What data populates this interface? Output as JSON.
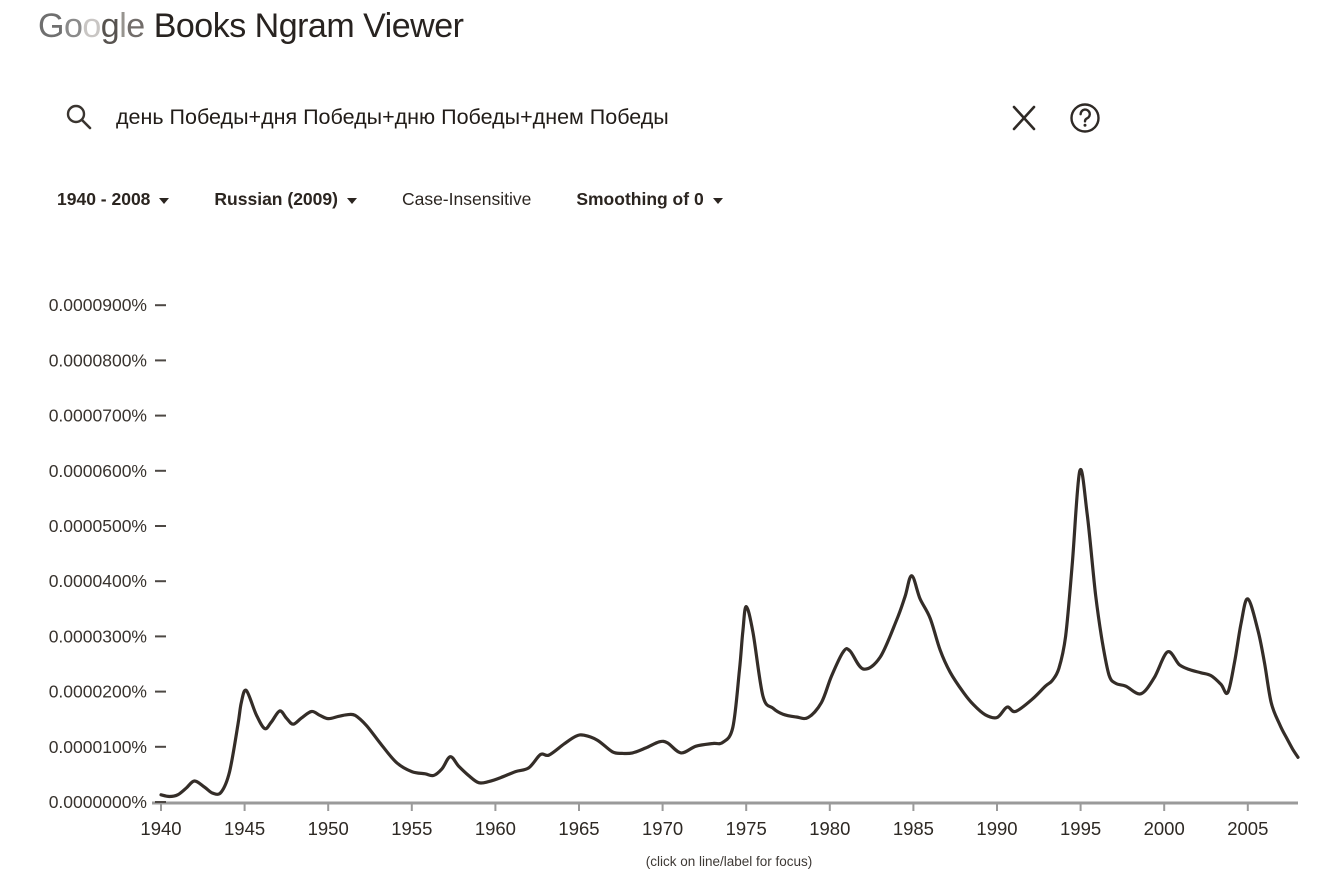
{
  "header": {
    "brand": "Google",
    "product": "Books Ngram Viewer"
  },
  "search": {
    "query": "день Победы+дня Победы+дню Победы+днем Победы",
    "icons": {
      "search": "magnifier-icon",
      "clear": "close-x-icon",
      "help": "question-mark-icon"
    }
  },
  "controls": [
    {
      "label": "1940 - 2008",
      "dropdown": true
    },
    {
      "label": "Russian (2009)",
      "dropdown": true
    },
    {
      "label": "Case-Insensitive",
      "dropdown": false
    },
    {
      "label": "Smoothing of 0",
      "dropdown": true
    }
  ],
  "footer": {
    "hint": "(click on line/label for focus)"
  },
  "chart_data": {
    "type": "line",
    "title": "",
    "xlabel": "",
    "ylabel": "",
    "grid": false,
    "legend": "none",
    "xlim": [
      1940,
      2008
    ],
    "ylim_percent": [
      0.0,
      9e-05
    ],
    "x_ticks": [
      1940,
      1945,
      1950,
      1955,
      1960,
      1965,
      1970,
      1975,
      1980,
      1985,
      1990,
      1995,
      2000,
      2005
    ],
    "y_ticks": [
      {
        "label": "0.0000900%",
        "value": 900
      },
      {
        "label": "0.0000800%",
        "value": 800
      },
      {
        "label": "0.0000700%",
        "value": 700
      },
      {
        "label": "0.0000600%",
        "value": 600
      },
      {
        "label": "0.0000500%",
        "value": 500
      },
      {
        "label": "0.0000400%",
        "value": 400
      },
      {
        "label": "0.0000300%",
        "value": 300
      },
      {
        "label": "0.0000200%",
        "value": 200
      },
      {
        "label": "0.0000100%",
        "value": 100
      },
      {
        "label": "0.0000000%",
        "value": 0
      }
    ],
    "value_unit": "percent",
    "value_scale": 1e-07,
    "colors": {
      "line": "#342d28",
      "axis": "#9a9a9a",
      "tick_dash": "#4d4844",
      "tick_text": "#2e2924"
    },
    "series": [
      {
        "name": "день Победы+дня Победы+дню Победы+днем Победы",
        "color": "#342d28",
        "points": [
          [
            1940.0,
            13
          ],
          [
            1940.5,
            10
          ],
          [
            1941.0,
            13
          ],
          [
            1941.5,
            25
          ],
          [
            1942.0,
            38
          ],
          [
            1942.6,
            27
          ],
          [
            1943.1,
            16
          ],
          [
            1943.6,
            18
          ],
          [
            1944.1,
            55
          ],
          [
            1944.6,
            140
          ],
          [
            1944.8,
            180
          ],
          [
            1945.1,
            202
          ],
          [
            1945.7,
            158
          ],
          [
            1946.2,
            133
          ],
          [
            1946.6,
            145
          ],
          [
            1947.1,
            165
          ],
          [
            1947.5,
            152
          ],
          [
            1947.9,
            141
          ],
          [
            1948.4,
            152
          ],
          [
            1949.0,
            164
          ],
          [
            1949.5,
            157
          ],
          [
            1950.0,
            151
          ],
          [
            1950.6,
            155
          ],
          [
            1951.1,
            158
          ],
          [
            1951.6,
            157
          ],
          [
            1952.3,
            138
          ],
          [
            1953.2,
            103
          ],
          [
            1954.1,
            71
          ],
          [
            1955.0,
            55
          ],
          [
            1955.8,
            51
          ],
          [
            1956.3,
            48
          ],
          [
            1956.8,
            60
          ],
          [
            1957.3,
            82
          ],
          [
            1957.8,
            65
          ],
          [
            1958.4,
            48
          ],
          [
            1959.0,
            35
          ],
          [
            1959.6,
            37
          ],
          [
            1960.3,
            44
          ],
          [
            1961.2,
            55
          ],
          [
            1962.0,
            62
          ],
          [
            1962.7,
            86
          ],
          [
            1963.2,
            85
          ],
          [
            1964.1,
            105
          ],
          [
            1964.8,
            119
          ],
          [
            1965.3,
            121
          ],
          [
            1966.1,
            112
          ],
          [
            1967.0,
            91
          ],
          [
            1967.6,
            88
          ],
          [
            1968.2,
            89
          ],
          [
            1969.0,
            98
          ],
          [
            1969.8,
            109
          ],
          [
            1970.3,
            107
          ],
          [
            1971.1,
            89
          ],
          [
            1972.0,
            101
          ],
          [
            1973.0,
            106
          ],
          [
            1973.6,
            108
          ],
          [
            1974.2,
            135
          ],
          [
            1974.6,
            240
          ],
          [
            1974.8,
            310
          ],
          [
            1975.0,
            354
          ],
          [
            1975.4,
            308
          ],
          [
            1976.0,
            192
          ],
          [
            1976.6,
            170
          ],
          [
            1977.2,
            159
          ],
          [
            1978.0,
            154
          ],
          [
            1978.7,
            153
          ],
          [
            1979.5,
            180
          ],
          [
            1980.1,
            228
          ],
          [
            1980.8,
            272
          ],
          [
            1981.2,
            274
          ],
          [
            1982.0,
            241
          ],
          [
            1983.0,
            262
          ],
          [
            1984.0,
            330
          ],
          [
            1984.5,
            372
          ],
          [
            1984.9,
            410
          ],
          [
            1985.4,
            368
          ],
          [
            1986.0,
            333
          ],
          [
            1986.6,
            275
          ],
          [
            1987.2,
            235
          ],
          [
            1988.0,
            198
          ],
          [
            1988.6,
            176
          ],
          [
            1989.3,
            158
          ],
          [
            1990.0,
            153
          ],
          [
            1990.6,
            172
          ],
          [
            1991.1,
            164
          ],
          [
            1992.1,
            186
          ],
          [
            1992.9,
            210
          ],
          [
            1993.3,
            220
          ],
          [
            1993.7,
            242
          ],
          [
            1994.1,
            300
          ],
          [
            1994.5,
            430
          ],
          [
            1994.95,
            600
          ],
          [
            1995.4,
            520
          ],
          [
            1995.9,
            375
          ],
          [
            1996.3,
            290
          ],
          [
            1996.7,
            230
          ],
          [
            1997.1,
            215
          ],
          [
            1997.7,
            210
          ],
          [
            1998.6,
            196
          ],
          [
            1999.4,
            225
          ],
          [
            2000.2,
            272
          ],
          [
            2000.9,
            249
          ],
          [
            2001.5,
            240
          ],
          [
            2002.2,
            234
          ],
          [
            2002.8,
            229
          ],
          [
            2003.4,
            213
          ],
          [
            2003.8,
            198
          ],
          [
            2004.2,
            252
          ],
          [
            2004.6,
            324
          ],
          [
            2005.0,
            368
          ],
          [
            2005.6,
            312
          ],
          [
            2006.0,
            252
          ],
          [
            2006.4,
            180
          ],
          [
            2006.9,
            141
          ],
          [
            2007.3,
            117
          ],
          [
            2007.7,
            95
          ],
          [
            2008.0,
            81
          ]
        ]
      }
    ]
  }
}
